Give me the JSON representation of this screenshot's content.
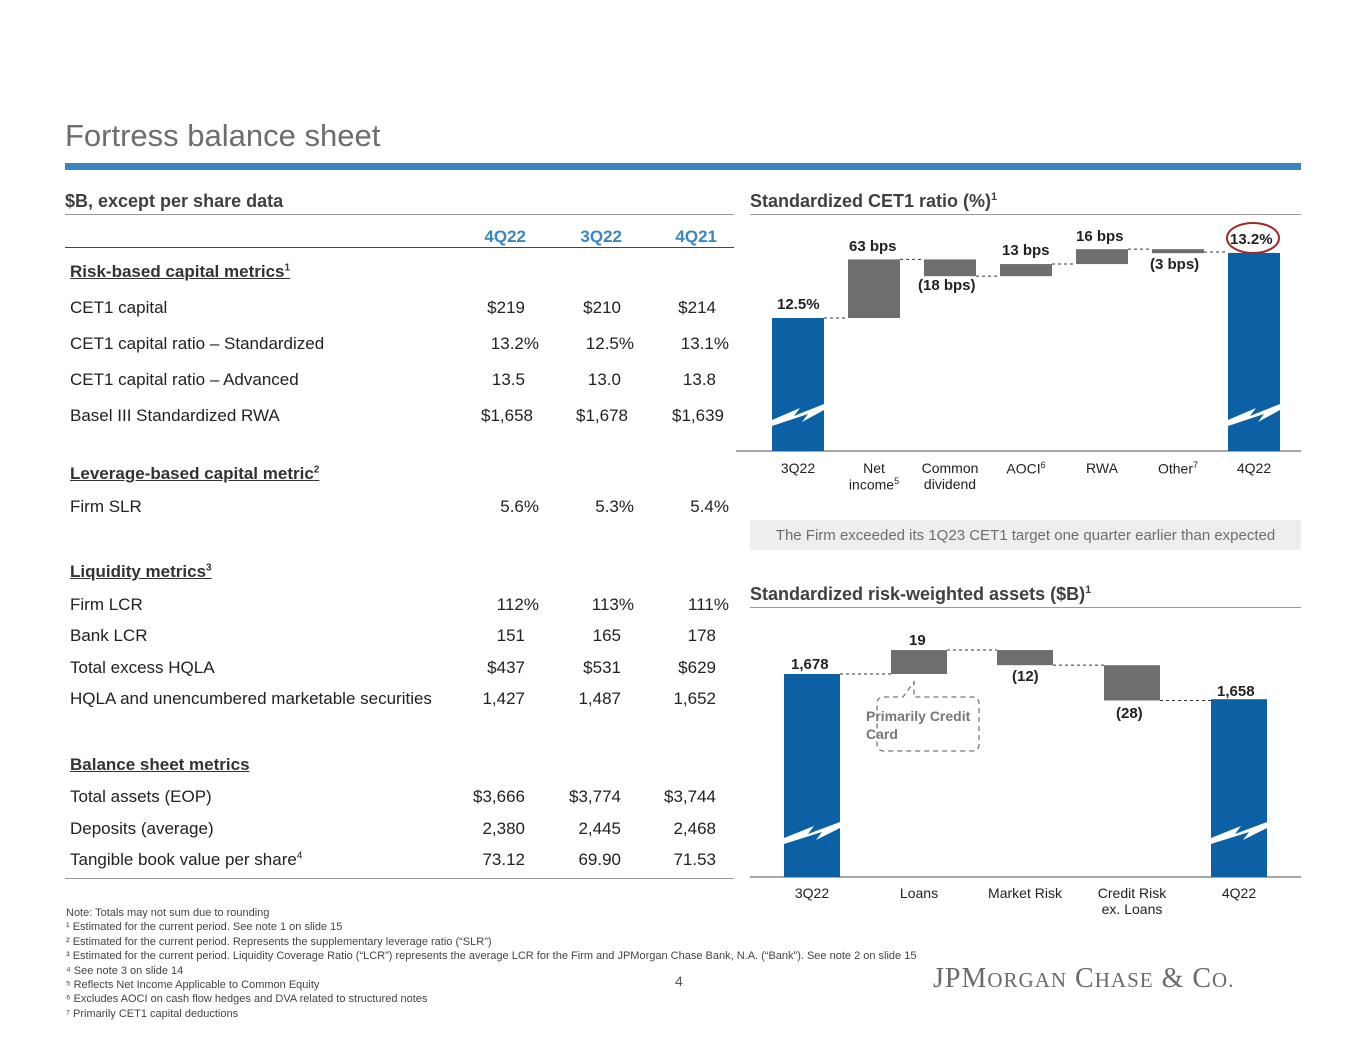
{
  "title": "Fortress balance sheet",
  "page_number": "4",
  "logo_text": {
    "jp": "JP",
    "m": "M",
    "organ": "ORGAN",
    "c": "C",
    "hase": "HASE",
    "amp": "&",
    "co": "C",
    "o": "O."
  },
  "colors": {
    "accent": "#3a86c0",
    "bar_blue": "#0b61a4",
    "bar_gray": "#6e6e6c",
    "highlight_ring": "#a02a2a"
  },
  "table": {
    "heading": "$B, except per share data",
    "columns": [
      "4Q22",
      "3Q22",
      "4Q21"
    ],
    "groups": [
      {
        "title": "Risk-based capital metrics",
        "sup": "1",
        "rows": [
          {
            "label": "CET1 capital",
            "sup": "",
            "values": [
              "$219",
              "$210",
              "$214"
            ]
          },
          {
            "label": "CET1 capital ratio – Standardized",
            "sup": "",
            "values": [
              "13.2%",
              "12.5%",
              "13.1%"
            ]
          },
          {
            "label": "CET1 capital ratio – Advanced",
            "sup": "",
            "values": [
              "13.5",
              "13.0",
              "13.8"
            ]
          },
          {
            "label": "Basel III Standardized RWA",
            "sup": "",
            "values": [
              "$1,658",
              "$1,678",
              "$1,639"
            ]
          }
        ]
      },
      {
        "title": "Leverage-based capital metric",
        "sup": "2",
        "rows": [
          {
            "label": "Firm SLR",
            "sup": "",
            "values": [
              "5.6%",
              "5.3%",
              "5.4%"
            ]
          }
        ]
      },
      {
        "title": "Liquidity metrics",
        "sup": "3",
        "rows": [
          {
            "label": "Firm LCR",
            "sup": "",
            "values": [
              "112%",
              "113%",
              "111%"
            ]
          },
          {
            "label": "Bank LCR",
            "sup": "",
            "values": [
              "151",
              "165",
              "178"
            ]
          },
          {
            "label": "Total excess HQLA",
            "sup": "",
            "values": [
              "$437",
              "$531",
              "$629"
            ]
          },
          {
            "label": "HQLA and unencumbered marketable securities",
            "sup": "",
            "values": [
              "1,427",
              "1,487",
              "1,652"
            ]
          }
        ]
      },
      {
        "title": "Balance sheet metrics",
        "sup": "",
        "rows": [
          {
            "label": "Total assets (EOP)",
            "sup": "",
            "values": [
              "$3,666",
              "$3,774",
              "$3,744"
            ]
          },
          {
            "label": "Deposits (average)",
            "sup": "",
            "values": [
              "2,380",
              "2,445",
              "2,468"
            ]
          },
          {
            "label": "Tangible book value per share",
            "sup": "4",
            "values": [
              "73.12",
              "69.90",
              "71.53"
            ]
          }
        ]
      }
    ]
  },
  "chart_data": [
    {
      "type": "waterfall",
      "title": "Standardized CET1 ratio (%)",
      "title_sup": "1",
      "units": "%",
      "categories": [
        "3Q22",
        "Net income",
        "Common dividend",
        "AOCI",
        "RWA",
        "Other",
        "4Q22"
      ],
      "category_sups": [
        "",
        "5",
        "",
        "6",
        "",
        "7",
        ""
      ],
      "values": [
        12.5,
        0.63,
        -0.18,
        0.13,
        0.16,
        -0.03,
        13.2
      ],
      "kinds": [
        "total",
        "delta",
        "delta",
        "delta",
        "delta",
        "delta",
        "total"
      ],
      "labels": [
        "12.5%",
        "63 bps",
        "(18 bps)",
        "13 bps",
        "16 bps",
        "(3 bps)",
        "13.2%"
      ],
      "axis_break": true,
      "highlight_label": "13.2%",
      "banner": "The Firm exceeded its 1Q23 CET1 target one quarter earlier than expected"
    },
    {
      "type": "waterfall",
      "title": "Standardized risk-weighted assets ($B)",
      "title_sup": "1",
      "units": "$B",
      "categories": [
        "3Q22",
        "Loans",
        "Market Risk",
        "Credit Risk ex. Loans",
        "4Q22"
      ],
      "values": [
        1678,
        19,
        -12,
        -28,
        1658
      ],
      "kinds": [
        "total",
        "delta",
        "delta",
        "delta",
        "total"
      ],
      "labels": [
        "1,678",
        "19",
        "(12)",
        "(28)",
        "1,658"
      ],
      "axis_break": true,
      "callout": "Primarily Credit Card"
    }
  ],
  "notes": [
    "Note: Totals may not sum due to rounding",
    "¹ Estimated for the current period. See note 1 on slide 15",
    "² Estimated for the current period. Represents the supplementary leverage ratio (“SLR”)",
    "³ Estimated for the current period. Liquidity Coverage Ratio (“LCR”) represents the average LCR for the Firm and JPMorgan Chase Bank, N.A. (“Bank”). See note 2 on slide 15",
    "⁴ See note 3 on slide 14",
    "⁵ Reflects Net Income Applicable to Common Equity",
    "⁶ Excludes AOCI on cash flow hedges and DVA related to structured notes",
    "⁷ Primarily CET1 capital deductions"
  ]
}
